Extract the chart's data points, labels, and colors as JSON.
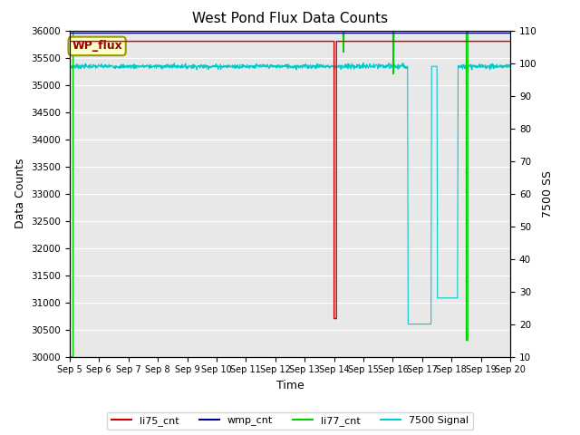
{
  "title": "West Pond Flux Data Counts",
  "xlabel": "Time",
  "ylabel_left": "Data Counts",
  "ylabel_right": "7500 SS",
  "ylim_left": [
    30000,
    36000
  ],
  "ylim_right": [
    10,
    110
  ],
  "yticks_left": [
    30000,
    30500,
    31000,
    31500,
    32000,
    32500,
    33000,
    33500,
    34000,
    34500,
    35000,
    35500,
    36000
  ],
  "yticks_right": [
    10,
    20,
    30,
    40,
    50,
    60,
    70,
    80,
    90,
    100,
    110
  ],
  "xtick_labels": [
    "Sep 5",
    "Sep 6",
    "Sep 7",
    "Sep 8",
    "Sep 9",
    "Sep 10",
    "Sep 11",
    "Sep 12",
    "Sep 13",
    "Sep 14",
    "Sep 15",
    "Sep 16",
    "Sep 17",
    "Sep 18",
    "Sep 19",
    "Sep 20"
  ],
  "background_color": "#e8e8e8",
  "annotation_box": {
    "text": "WP_flux",
    "facecolor": "#ffffcc",
    "edgecolor": "#999900",
    "textcolor": "#990000"
  },
  "series": {
    "li75_cnt": {
      "color": "#cc0000"
    },
    "wmp_cnt": {
      "color": "#000099"
    },
    "li77_cnt": {
      "color": "#00cc00"
    },
    "7500_signal": {
      "color": "#00cccc"
    }
  },
  "figsize": [
    6.4,
    4.8
  ],
  "dpi": 100
}
